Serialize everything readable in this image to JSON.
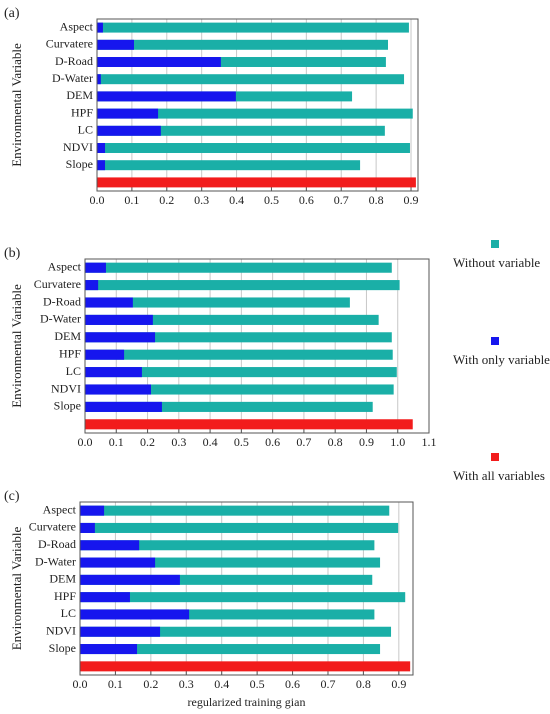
{
  "chart_data": [
    {
      "type": "bar",
      "orientation": "horizontal",
      "title": "(a)",
      "ylabel": "Environmental Variable",
      "categories": [
        "Aspect",
        "Curvatere",
        "D-Road",
        "D-Water",
        "DEM",
        "HPF",
        "LC",
        "NDVI",
        "Slope",
        null
      ],
      "series": [
        {
          "name": "Without variable",
          "color": "#1aafa7",
          "values": [
            0.894,
            0.834,
            0.828,
            0.88,
            0.731,
            0.905,
            0.825,
            0.897,
            0.754,
            null
          ]
        },
        {
          "name": "With only variable",
          "color": "#1616ee",
          "values": [
            0.017,
            0.106,
            0.355,
            0.011,
            0.398,
            0.175,
            0.183,
            0.023,
            0.023,
            null
          ]
        },
        {
          "name": "With all variables",
          "color": "#f21c1c",
          "values": [
            null,
            null,
            null,
            null,
            null,
            null,
            null,
            null,
            null,
            0.914
          ]
        }
      ],
      "xlim": [
        0,
        0.92
      ],
      "xticks": [
        {
          "value": 0,
          "label": "0.0"
        },
        0.1,
        0.2,
        0.3,
        0.4,
        0.5,
        0.6,
        0.7,
        0.8,
        0.9
      ],
      "grid": true
    },
    {
      "type": "bar",
      "orientation": "horizontal",
      "title": "(b)",
      "ylabel": "Environmental Variable",
      "categories": [
        "Aspect",
        "Curvatere",
        "D-Road",
        "D-Water",
        "DEM",
        "HPF",
        "LC",
        "NDVI",
        "Slope",
        null
      ],
      "series": [
        {
          "color": "#1aafa7",
          "values": [
            0.981,
            1.006,
            0.847,
            0.939,
            0.981,
            0.984,
            0.997,
            0.987,
            0.92,
            null
          ]
        },
        {
          "color": "#1616ee",
          "values": [
            0.067,
            0.042,
            0.153,
            0.217,
            0.224,
            0.125,
            0.182,
            0.211,
            0.246,
            null
          ]
        },
        {
          "color": "#f21c1c",
          "values": [
            null,
            null,
            null,
            null,
            null,
            null,
            null,
            null,
            null,
            1.048
          ]
        }
      ],
      "xlim": [
        0,
        1.1
      ],
      "xticks": [
        {
          "value": 0,
          "label": "0.0"
        },
        0.1,
        0.2,
        0.3,
        0.4,
        0.5,
        0.6,
        0.7,
        0.8,
        0.9,
        {
          "value": 1,
          "label": "1.0"
        },
        1.1
      ],
      "grid": true
    },
    {
      "type": "bar",
      "orientation": "horizontal",
      "title": "(c)",
      "ylabel": "Environmental Variable",
      "xlabel": "regularized training gian",
      "categories": [
        "Aspect",
        "Curvatere",
        "D-Road",
        "D-Water",
        "DEM",
        "HPF",
        "LC",
        "NDVI",
        "Slope",
        null
      ],
      "series": [
        {
          "color": "#1aafa7",
          "values": [
            0.873,
            0.898,
            0.831,
            0.847,
            0.825,
            0.918,
            0.831,
            0.878,
            0.847,
            null
          ]
        },
        {
          "color": "#1616ee",
          "values": [
            0.068,
            0.042,
            0.167,
            0.212,
            0.282,
            0.141,
            0.308,
            0.226,
            0.161,
            null
          ]
        },
        {
          "color": "#f21c1c",
          "values": [
            null,
            null,
            null,
            null,
            null,
            null,
            null,
            null,
            null,
            0.932
          ]
        }
      ],
      "xlim": [
        0,
        0.94
      ],
      "xticks": [
        {
          "value": 0,
          "label": "0.0"
        },
        0.1,
        0.2,
        0.3,
        0.4,
        0.5,
        0.6,
        0.7,
        0.8,
        0.9
      ],
      "grid": true
    }
  ]
}
